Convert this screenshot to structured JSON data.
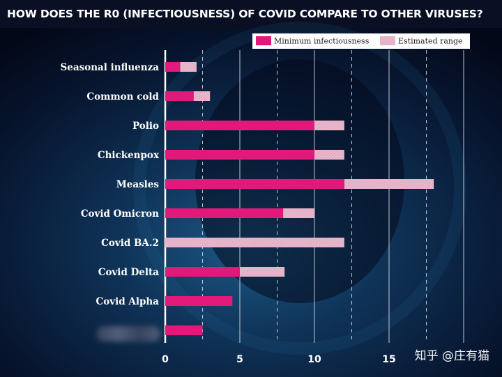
{
  "header": {
    "title": "HOW DOES THE R0 (INFECTIOUSNESS) OF COVID COMPARE TO OTHER VIRUSES?"
  },
  "watermark": {
    "text": "知乎 @庄有猫"
  },
  "colors": {
    "background": "#050b1f",
    "minimum_bar": "#e0197a",
    "range_bar": "#e9b9cd",
    "text": "#ffffff",
    "gridline": "#ffffff"
  },
  "chart_data": {
    "type": "bar",
    "orientation": "horizontal",
    "stacked": true,
    "title": "HOW DOES THE R0 (INFECTIOUSNESS) OF COVID COMPARE TO OTHER VIRUSES?",
    "categories": [
      "Seasonal influenza",
      "Common cold",
      "Polio",
      "Chickenpox",
      "Measles",
      "Covid Omicron",
      "Covid BA.2",
      "Covid Delta",
      "Covid Alpha",
      ""
    ],
    "series": [
      {
        "name": "Minimum infectiousness",
        "values": [
          1,
          1.9,
          10,
          10,
          12,
          7.9,
          0,
          5,
          4.5,
          2.5
        ]
      },
      {
        "name": "Estimated range",
        "values": [
          1.1,
          1.1,
          2,
          2,
          6,
          2.1,
          12,
          3,
          0,
          0
        ]
      }
    ],
    "xticks": [
      0,
      5,
      10,
      15
    ],
    "xtick_labels": [
      "0",
      "5",
      "10",
      "15"
    ],
    "xlim": [
      0,
      20
    ],
    "gridlines": [
      2.5,
      5,
      7.5,
      10,
      12.5,
      15,
      17.5,
      20
    ],
    "grid": true,
    "legend_position": "top-right",
    "xlabel": "",
    "ylabel": ""
  }
}
